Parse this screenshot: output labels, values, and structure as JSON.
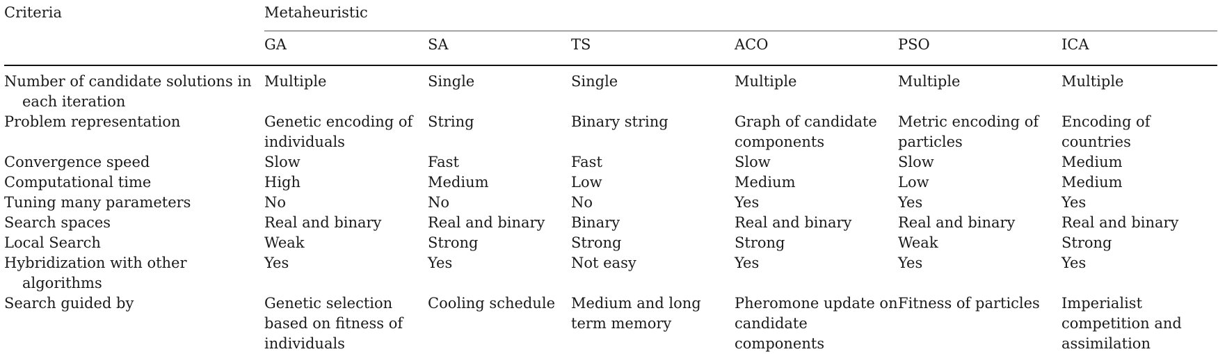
{
  "table": {
    "criteria_header": "Criteria",
    "group_header": "Metaheuristic",
    "algorithms": [
      "GA",
      "SA",
      "TS",
      "ACO",
      "PSO",
      "ICA"
    ],
    "rows": [
      {
        "criterion": "Number of candidate solutions in each iteration",
        "values": [
          "Multiple",
          "Single",
          "Single",
          "Multiple",
          "Multiple",
          "Multiple"
        ]
      },
      {
        "criterion": "Problem representation",
        "values": [
          "Genetic encoding of individuals",
          "String",
          "Binary string",
          "Graph of candidate components",
          "Metric encoding of particles",
          "Encoding of countries"
        ]
      },
      {
        "criterion": "Convergence speed",
        "values": [
          "Slow",
          "Fast",
          "Fast",
          "Slow",
          "Slow",
          "Medium"
        ]
      },
      {
        "criterion": "Computational time",
        "values": [
          "High",
          "Medium",
          "Low",
          "Medium",
          "Low",
          "Medium"
        ]
      },
      {
        "criterion": "Tuning many parameters",
        "values": [
          "No",
          "No",
          "No",
          "Yes",
          "Yes",
          "Yes"
        ]
      },
      {
        "criterion": "Search spaces",
        "values": [
          "Real and binary",
          "Real and binary",
          "Binary",
          "Real and binary",
          "Real and binary",
          "Real and binary"
        ]
      },
      {
        "criterion": "Local Search",
        "values": [
          "Weak",
          "Strong",
          "Strong",
          "Strong",
          "Weak",
          "Strong"
        ]
      },
      {
        "criterion": "Hybridization with other algorithms",
        "values": [
          "Yes",
          "Yes",
          "Not easy",
          "Yes",
          "Yes",
          "Yes"
        ]
      },
      {
        "criterion": "Search guided by",
        "values": [
          "Genetic selection based on fitness of individuals",
          "Cooling schedule",
          "Medium and long term memory",
          "Pheromone update on candidate components",
          "Fitness of particles",
          "Imperialist competition and assimilation"
        ]
      }
    ]
  }
}
